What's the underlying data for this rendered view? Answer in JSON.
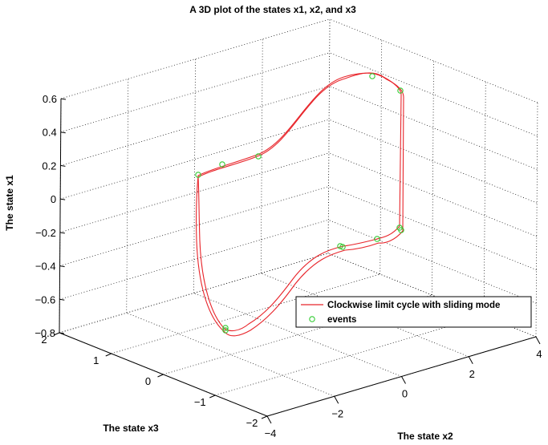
{
  "chart_data": {
    "type": "line3d",
    "title": "A 3D plot of the states x1, x2, and x3",
    "xlabel": "The state x2",
    "ylabel": "The state x3",
    "zlabel": "The state x1",
    "x_ticks": [
      "−4",
      "−2",
      "0",
      "2",
      "4"
    ],
    "y_ticks": [
      "−2",
      "−1",
      "0",
      "1",
      "2"
    ],
    "z_ticks": [
      "−0.8",
      "−0.6",
      "−0.4",
      "−0.2",
      "0",
      "0.2",
      "0.4",
      "0.6"
    ],
    "xlim": [
      -4,
      4
    ],
    "ylim": [
      -2,
      2
    ],
    "zlim": [
      -0.8,
      0.6
    ],
    "grid": true,
    "legend_position": "inside-right",
    "colors": {
      "curve": "#e8242a",
      "events": "#33cc33"
    },
    "series": [
      {
        "name": "Clockwise limit cycle with sliding mode",
        "style": "line"
      },
      {
        "name": "events",
        "style": "markers"
      }
    ]
  }
}
